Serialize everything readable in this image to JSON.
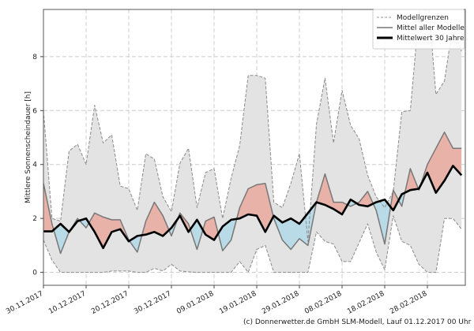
{
  "chart_data": {
    "type": "area",
    "ylabel": "Mittlere Sonnenscheindauer [h]",
    "xlabel": "",
    "ylim": [
      -0.48,
      9.75
    ],
    "grid": true,
    "legend_position": "top-right",
    "x_tick_labels": [
      "30.11.2017",
      "10.12.2017",
      "20.12.2017",
      "30.12.2017",
      "09.01.2018",
      "19.01.2018",
      "29.01.2018",
      "08.02.2018",
      "18.02.2018",
      "28.02.2018"
    ],
    "y_ticks": [
      0,
      2,
      4,
      6,
      8
    ],
    "x_step_days": 2,
    "x": [
      "30.11.2017",
      "02.12.2017",
      "04.12.2017",
      "06.12.2017",
      "08.12.2017",
      "10.12.2017",
      "12.12.2017",
      "14.12.2017",
      "16.12.2017",
      "18.12.2017",
      "20.12.2017",
      "22.12.2017",
      "24.12.2017",
      "26.12.2017",
      "28.12.2017",
      "30.12.2017",
      "01.01.2018",
      "03.01.2018",
      "05.01.2018",
      "07.01.2018",
      "09.01.2018",
      "11.01.2018",
      "13.01.2018",
      "15.01.2018",
      "17.01.2018",
      "19.01.2018",
      "21.01.2018",
      "23.01.2018",
      "25.01.2018",
      "27.01.2018",
      "29.01.2018",
      "31.01.2018",
      "02.02.2018",
      "04.02.2018",
      "06.02.2018",
      "08.02.2018",
      "10.02.2018",
      "12.02.2018",
      "14.02.2018",
      "16.02.2018",
      "18.02.2018",
      "20.02.2018",
      "22.02.2018",
      "24.02.2018",
      "26.02.2018",
      "28.02.2018",
      "02.03.2018",
      "04.03.2018",
      "06.03.2018",
      "08.03.2018"
    ],
    "series": [
      {
        "name": "Modellgrenzen",
        "role": "upper",
        "values": [
          6.0,
          2.0,
          1.9,
          4.5,
          4.75,
          4.0,
          6.2,
          4.8,
          5.1,
          3.2,
          3.1,
          2.3,
          4.4,
          4.2,
          2.8,
          2.25,
          4.05,
          4.6,
          2.4,
          3.7,
          3.85,
          2.0,
          3.5,
          4.7,
          7.3,
          7.3,
          7.2,
          2.6,
          2.4,
          3.3,
          4.4,
          1.15,
          5.5,
          7.2,
          4.8,
          6.75,
          5.45,
          4.95,
          3.6,
          2.8,
          2.4,
          3.0,
          5.95,
          6.0,
          9.6,
          10.5,
          6.6,
          7.1,
          9.2,
          8.2
        ]
      },
      {
        "name": "Modellgrenzen",
        "role": "lower",
        "values": [
          1.2,
          0.45,
          0,
          0,
          0,
          0,
          0,
          0,
          0.05,
          0.05,
          0.05,
          0,
          0,
          0.15,
          0.05,
          0.3,
          0.05,
          0.02,
          0,
          0,
          0,
          0,
          0,
          0.4,
          0,
          0.85,
          1.0,
          0,
          0,
          0,
          0,
          0,
          1.5,
          1.15,
          1.05,
          0.4,
          0.4,
          1.1,
          1.8,
          0.75,
          0.1,
          2.1,
          1.15,
          1.0,
          0.3,
          0,
          0,
          2.0,
          2.0,
          1.6
        ]
      },
      {
        "name": "Mittel aller Modelle",
        "values": [
          3.3,
          1.8,
          0.7,
          1.5,
          2.0,
          1.65,
          2.2,
          2.05,
          1.95,
          1.95,
          1.2,
          0.75,
          1.9,
          2.6,
          2.1,
          1.35,
          2.2,
          1.8,
          0.85,
          1.9,
          2.05,
          0.8,
          1.2,
          2.4,
          3.1,
          3.25,
          3.3,
          2.0,
          1.2,
          0.85,
          1.25,
          1.0,
          2.6,
          3.65,
          2.6,
          2.6,
          2.45,
          2.6,
          3.0,
          2.3,
          1.05,
          3.05,
          2.45,
          3.85,
          3.05,
          4.0,
          4.6,
          5.2,
          4.6,
          4.6
        ]
      },
      {
        "name": "Mittelwert 30 Jahre",
        "values": [
          1.52,
          1.52,
          1.8,
          1.5,
          1.9,
          2.0,
          1.5,
          0.9,
          1.5,
          1.6,
          1.15,
          1.35,
          1.4,
          1.5,
          1.35,
          1.65,
          2.1,
          1.5,
          1.95,
          1.4,
          1.2,
          1.7,
          1.95,
          2.0,
          2.15,
          2.1,
          1.5,
          2.1,
          1.85,
          2.0,
          1.8,
          2.2,
          2.6,
          2.5,
          2.35,
          2.15,
          2.7,
          2.5,
          2.45,
          2.6,
          2.7,
          2.3,
          2.9,
          3.05,
          3.1,
          3.7,
          2.95,
          3.4,
          3.95,
          3.6
        ]
      }
    ],
    "colors": {
      "range_fill": "#e3e3e3",
      "bound_line": "#8a8a8a",
      "model_mean": "#777777",
      "mean30": "#000000",
      "above": "#e8b2a8",
      "below": "#b9dbe8"
    }
  },
  "legend": {
    "items": [
      "Modellgrenzen",
      "Mittel aller Modelle",
      "Mittelwert 30 Jahre"
    ]
  },
  "credit": "(c) Donnerwetter.de GmbH SLM-Modell, Lauf 01.12.2017 00 Uhr"
}
